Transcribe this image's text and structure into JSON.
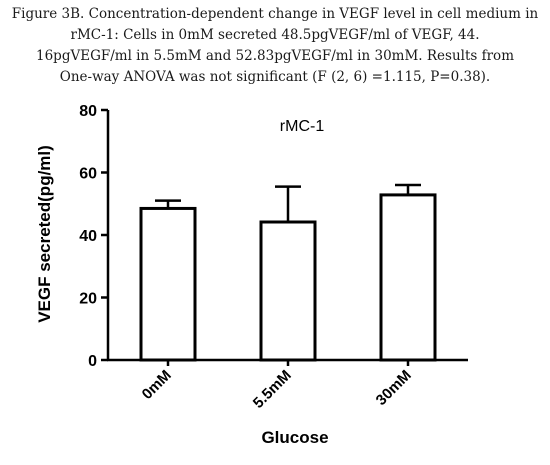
{
  "caption": {
    "lines": [
      "Figure 3B. Concentration-dependent change in VEGF level in cell medium in",
      "rMC-1: Cells in 0mM secreted 48.5pgVEGF/ml of VEGF, 44.",
      "16pgVEGF/ml in 5.5mM and 52.83pgVEGF/ml in 30mM. Results from",
      "One-way ANOVA was not significant (F (2, 6) =1.115, P=0.38)."
    ]
  },
  "chart_data": {
    "type": "bar",
    "title": "rMC-1",
    "xlabel": "Glucose",
    "ylabel": "VEGF secreted(pg/ml)",
    "categories": [
      "0mM",
      "5.5mM",
      "30mM"
    ],
    "values": [
      48.5,
      44.16,
      52.83
    ],
    "error_upper": [
      51.0,
      55.5,
      56.0
    ],
    "ylim": [
      0,
      80
    ],
    "yticks": [
      "0",
      "20",
      "40",
      "60",
      "80"
    ],
    "grid": false,
    "legend": "none",
    "bar_color": "#000000"
  }
}
